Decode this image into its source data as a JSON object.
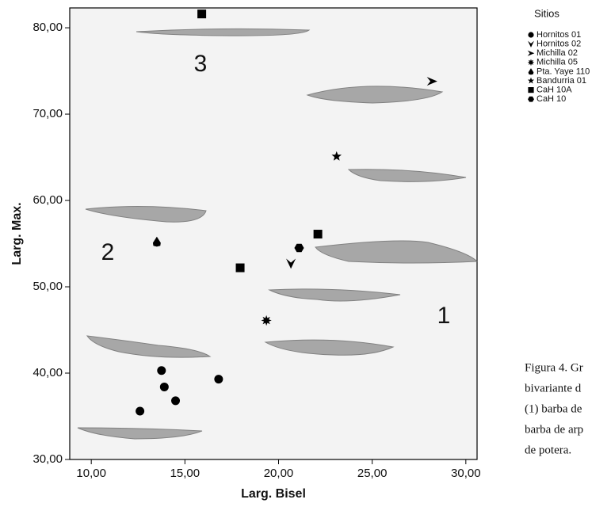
{
  "chart_data": {
    "type": "scatter",
    "x_label": "Larg. Bisel",
    "y_label": "Larg. Max.",
    "xlim": [
      8.85,
      30.6
    ],
    "ylim": [
      30,
      82.3
    ],
    "xticks": [
      {
        "value": 10,
        "label": "10,00"
      },
      {
        "value": 15,
        "label": "15,00"
      },
      {
        "value": 20,
        "label": "20,00"
      },
      {
        "value": 25,
        "label": "25,00"
      },
      {
        "value": 30,
        "label": "30,00"
      }
    ],
    "yticks": [
      {
        "value": 30,
        "label": "30,00"
      },
      {
        "value": 40,
        "label": "40,00"
      },
      {
        "value": 50,
        "label": "50,00"
      },
      {
        "value": 60,
        "label": "60,00"
      },
      {
        "value": 70,
        "label": "70,00"
      },
      {
        "value": 80,
        "label": "80,00"
      }
    ],
    "legend_title": "Sitios",
    "series": [
      {
        "name": "Hornitos 01",
        "marker": "circle",
        "color": "#000000",
        "x": [
          12.6,
          13.75,
          13.9,
          14.5,
          16.8
        ],
        "values": [
          35.6,
          40.3,
          38.4,
          36.8,
          39.3
        ]
      },
      {
        "name": "Hornitos 02",
        "marker": "tri-down",
        "color": "#000000",
        "x": [
          20.66
        ],
        "values": [
          52.7
        ]
      },
      {
        "name": "Michilla 02",
        "marker": "arrow",
        "color": "#000000",
        "x": [
          28.2
        ],
        "values": [
          73.8
        ]
      },
      {
        "name": "Michilla 05",
        "marker": "asterisk",
        "color": "#000000",
        "x": [
          19.35
        ],
        "values": [
          46.1
        ]
      },
      {
        "name": "Pta. Yaye 110",
        "marker": "drop",
        "color": "#000000",
        "x": [
          13.5
        ],
        "values": [
          55.2
        ]
      },
      {
        "name": "Bandurria 01",
        "marker": "star",
        "color": "#000000",
        "x": [
          23.1
        ],
        "values": [
          65.1
        ]
      },
      {
        "name": "CaH 10A",
        "marker": "square",
        "color": "#000000",
        "x": [
          15.9,
          17.95,
          22.1
        ],
        "values": [
          81.6,
          52.2,
          56.1
        ]
      },
      {
        "name": "CaH 10",
        "marker": "hexagon",
        "color": "#000000",
        "x": [
          21.1
        ],
        "values": [
          54.5
        ]
      }
    ],
    "annotations": [
      "3",
      "2",
      "1"
    ]
  },
  "caption": [
    "Figura 4. Gr",
    "bivariante d",
    "(1) barba de",
    "barba de arp",
    "de potera."
  ]
}
